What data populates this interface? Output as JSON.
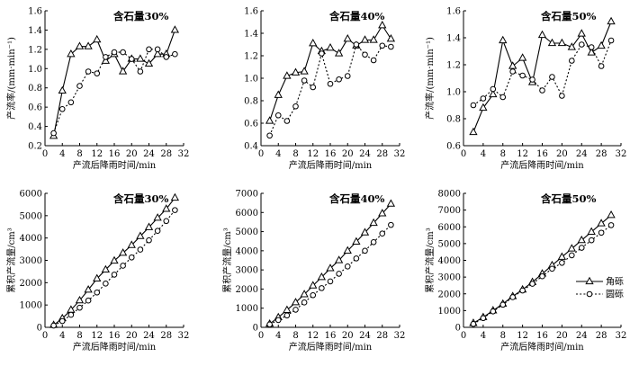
{
  "chart_data": [
    {
      "type": "line",
      "title": "含石量30%",
      "xlabel": "产流后降雨时间/min",
      "ylabel": "产流率/(mm·min⁻¹)",
      "xlim": [
        0,
        32
      ],
      "ylim": [
        0.2,
        1.6
      ],
      "xticks": [
        0,
        4,
        8,
        12,
        16,
        20,
        24,
        28,
        32
      ],
      "yticks": [
        0.2,
        0.4,
        0.6,
        0.8,
        1.0,
        1.2,
        1.4,
        1.6
      ],
      "ytick_labels": [
        "0.2",
        "0.4",
        "0.6",
        "0.8",
        "1.0",
        "1.2",
        "1.4",
        "1.6"
      ],
      "x": [
        2,
        4,
        6,
        8,
        10,
        12,
        14,
        16,
        18,
        20,
        22,
        24,
        26,
        28,
        30
      ],
      "series": [
        {
          "name": "角砾",
          "style": "solid-triangle",
          "values": [
            0.3,
            0.77,
            1.15,
            1.23,
            1.23,
            1.3,
            1.08,
            1.15,
            0.97,
            1.1,
            1.1,
            1.05,
            1.15,
            1.15,
            1.4
          ]
        },
        {
          "name": "圆砾",
          "style": "dotted-circle",
          "values": [
            0.33,
            0.58,
            0.65,
            0.82,
            0.97,
            0.95,
            1.12,
            1.17,
            1.17,
            1.1,
            0.97,
            1.2,
            1.2,
            1.12,
            1.15
          ]
        }
      ]
    },
    {
      "type": "line",
      "title": "含石量40%",
      "xlabel": "产流后降雨时间/min",
      "ylabel": "",
      "xlim": [
        0,
        32
      ],
      "ylim": [
        0.4,
        1.6
      ],
      "xticks": [
        0,
        4,
        8,
        12,
        16,
        20,
        24,
        28,
        32
      ],
      "yticks": [
        0.4,
        0.6,
        0.8,
        1.0,
        1.2,
        1.4,
        1.6
      ],
      "ytick_labels": [
        "0.4",
        "0.6",
        "0.8",
        "1.0",
        "1.2",
        "1.4",
        "1.6"
      ],
      "x": [
        2,
        4,
        6,
        8,
        10,
        12,
        14,
        16,
        18,
        20,
        22,
        24,
        26,
        28,
        30
      ],
      "series": [
        {
          "name": "角砾",
          "style": "solid-triangle",
          "values": [
            0.62,
            0.85,
            1.02,
            1.05,
            1.06,
            1.31,
            1.24,
            1.27,
            1.22,
            1.35,
            1.29,
            1.34,
            1.34,
            1.47,
            1.35
          ]
        },
        {
          "name": "圆砾",
          "style": "dotted-circle",
          "values": [
            0.49,
            0.67,
            0.62,
            0.75,
            0.98,
            0.92,
            1.22,
            0.95,
            0.99,
            1.02,
            1.3,
            1.21,
            1.16,
            1.29,
            1.28
          ]
        }
      ]
    },
    {
      "type": "line",
      "title": "含石量50%",
      "xlabel": "产流后降雨时间/min",
      "ylabel": "产流率/(mm·min⁻¹)",
      "xlim": [
        0,
        32
      ],
      "ylim": [
        0.6,
        1.6
      ],
      "xticks": [
        0,
        4,
        8,
        12,
        16,
        20,
        24,
        28,
        32
      ],
      "yticks": [
        0.6,
        0.8,
        1.0,
        1.2,
        1.4,
        1.6
      ],
      "ytick_labels": [
        "0.6",
        "0.8",
        "1.0",
        "1.2",
        "1.4",
        "1.6"
      ],
      "x": [
        2,
        4,
        6,
        8,
        10,
        12,
        14,
        16,
        18,
        20,
        22,
        24,
        26,
        28,
        30
      ],
      "series": [
        {
          "name": "角砾",
          "style": "solid-triangle",
          "values": [
            0.7,
            0.88,
            0.98,
            1.38,
            1.19,
            1.25,
            1.07,
            1.42,
            1.36,
            1.36,
            1.33,
            1.43,
            1.29,
            1.34,
            1.52
          ]
        },
        {
          "name": "圆砾",
          "style": "dotted-circle",
          "values": [
            0.9,
            0.95,
            1.02,
            0.96,
            1.15,
            1.12,
            1.09,
            1.01,
            1.11,
            0.97,
            1.23,
            1.35,
            1.33,
            1.19,
            1.38
          ]
        }
      ]
    },
    {
      "type": "line",
      "title": "含石量30%",
      "xlabel": "产流后降雨时间/min",
      "ylabel": "累积产流量/cm³",
      "xlim": [
        0,
        32
      ],
      "ylim": [
        0,
        6000
      ],
      "xticks": [
        0,
        4,
        8,
        12,
        16,
        20,
        24,
        28,
        32
      ],
      "yticks": [
        0,
        1000,
        2000,
        3000,
        4000,
        5000,
        6000
      ],
      "ytick_labels": [
        "0",
        "1000",
        "2000",
        "3000",
        "4000",
        "5000",
        "6000"
      ],
      "x": [
        2,
        4,
        6,
        8,
        10,
        12,
        14,
        16,
        18,
        20,
        22,
        24,
        26,
        28,
        30
      ],
      "series": [
        {
          "name": "角砾",
          "style": "solid-triangle",
          "values": [
            100,
            400,
            780,
            1200,
            1680,
            2180,
            2580,
            2980,
            3330,
            3680,
            4080,
            4480,
            4900,
            5300,
            5800
          ]
        },
        {
          "name": "圆砾",
          "style": "dotted-circle",
          "values": [
            80,
            280,
            560,
            880,
            1200,
            1560,
            1960,
            2360,
            2760,
            3130,
            3480,
            3900,
            4320,
            4760,
            5250
          ]
        }
      ]
    },
    {
      "type": "line",
      "title": "含石量40%",
      "xlabel": "产流后降雨时间/min",
      "ylabel": "累积产流量/cm³",
      "xlim": [
        0,
        32
      ],
      "ylim": [
        0,
        7000
      ],
      "xticks": [
        0,
        4,
        8,
        12,
        16,
        20,
        24,
        28,
        32
      ],
      "yticks": [
        0,
        1000,
        2000,
        3000,
        4000,
        5000,
        6000,
        7000
      ],
      "ytick_labels": [
        "0",
        "1000",
        "2000",
        "3000",
        "4000",
        "5000",
        "6000",
        "7000"
      ],
      "x": [
        2,
        4,
        6,
        8,
        10,
        12,
        14,
        16,
        18,
        20,
        22,
        24,
        26,
        28,
        30
      ],
      "series": [
        {
          "name": "角砾",
          "style": "solid-triangle",
          "values": [
            180,
            520,
            900,
            1300,
            1720,
            2180,
            2620,
            3080,
            3500,
            4000,
            4470,
            4950,
            5450,
            5950,
            6450
          ]
        },
        {
          "name": "圆砾",
          "style": "dotted-circle",
          "values": [
            150,
            380,
            620,
            920,
            1300,
            1680,
            2050,
            2400,
            2800,
            3180,
            3600,
            4000,
            4450,
            4900,
            5350
          ]
        }
      ]
    },
    {
      "type": "line",
      "title": "含石量50%",
      "xlabel": "产流后降雨时间/min",
      "ylabel": "累积产流量/cm³",
      "xlim": [
        0,
        32
      ],
      "ylim": [
        0,
        8000
      ],
      "xticks": [
        0,
        4,
        8,
        12,
        16,
        20,
        24,
        28,
        32
      ],
      "yticks": [
        0,
        1000,
        2000,
        3000,
        4000,
        5000,
        6000,
        7000,
        8000
      ],
      "ytick_labels": [
        "0",
        "1000",
        "2000",
        "3000",
        "4000",
        "5000",
        "6000",
        "7000",
        "8000"
      ],
      "x": [
        2,
        4,
        6,
        8,
        10,
        12,
        14,
        16,
        18,
        20,
        22,
        24,
        26,
        28,
        30
      ],
      "series": [
        {
          "name": "角砾",
          "style": "solid-triangle",
          "values": [
            250,
            600,
            1000,
            1400,
            1850,
            2250,
            2700,
            3200,
            3700,
            4200,
            4700,
            5200,
            5700,
            6200,
            6700
          ]
        },
        {
          "name": "圆砾",
          "style": "dotted-circle",
          "values": [
            200,
            550,
            950,
            1350,
            1800,
            2200,
            2600,
            3050,
            3500,
            3850,
            4300,
            4750,
            5200,
            5650,
            6100
          ]
        }
      ]
    }
  ],
  "legend": {
    "entries": [
      {
        "label": "角砾",
        "style": "solid-triangle"
      },
      {
        "label": "圆砾",
        "style": "dotted-circle"
      }
    ],
    "placement": "bottom-right of last panel"
  }
}
